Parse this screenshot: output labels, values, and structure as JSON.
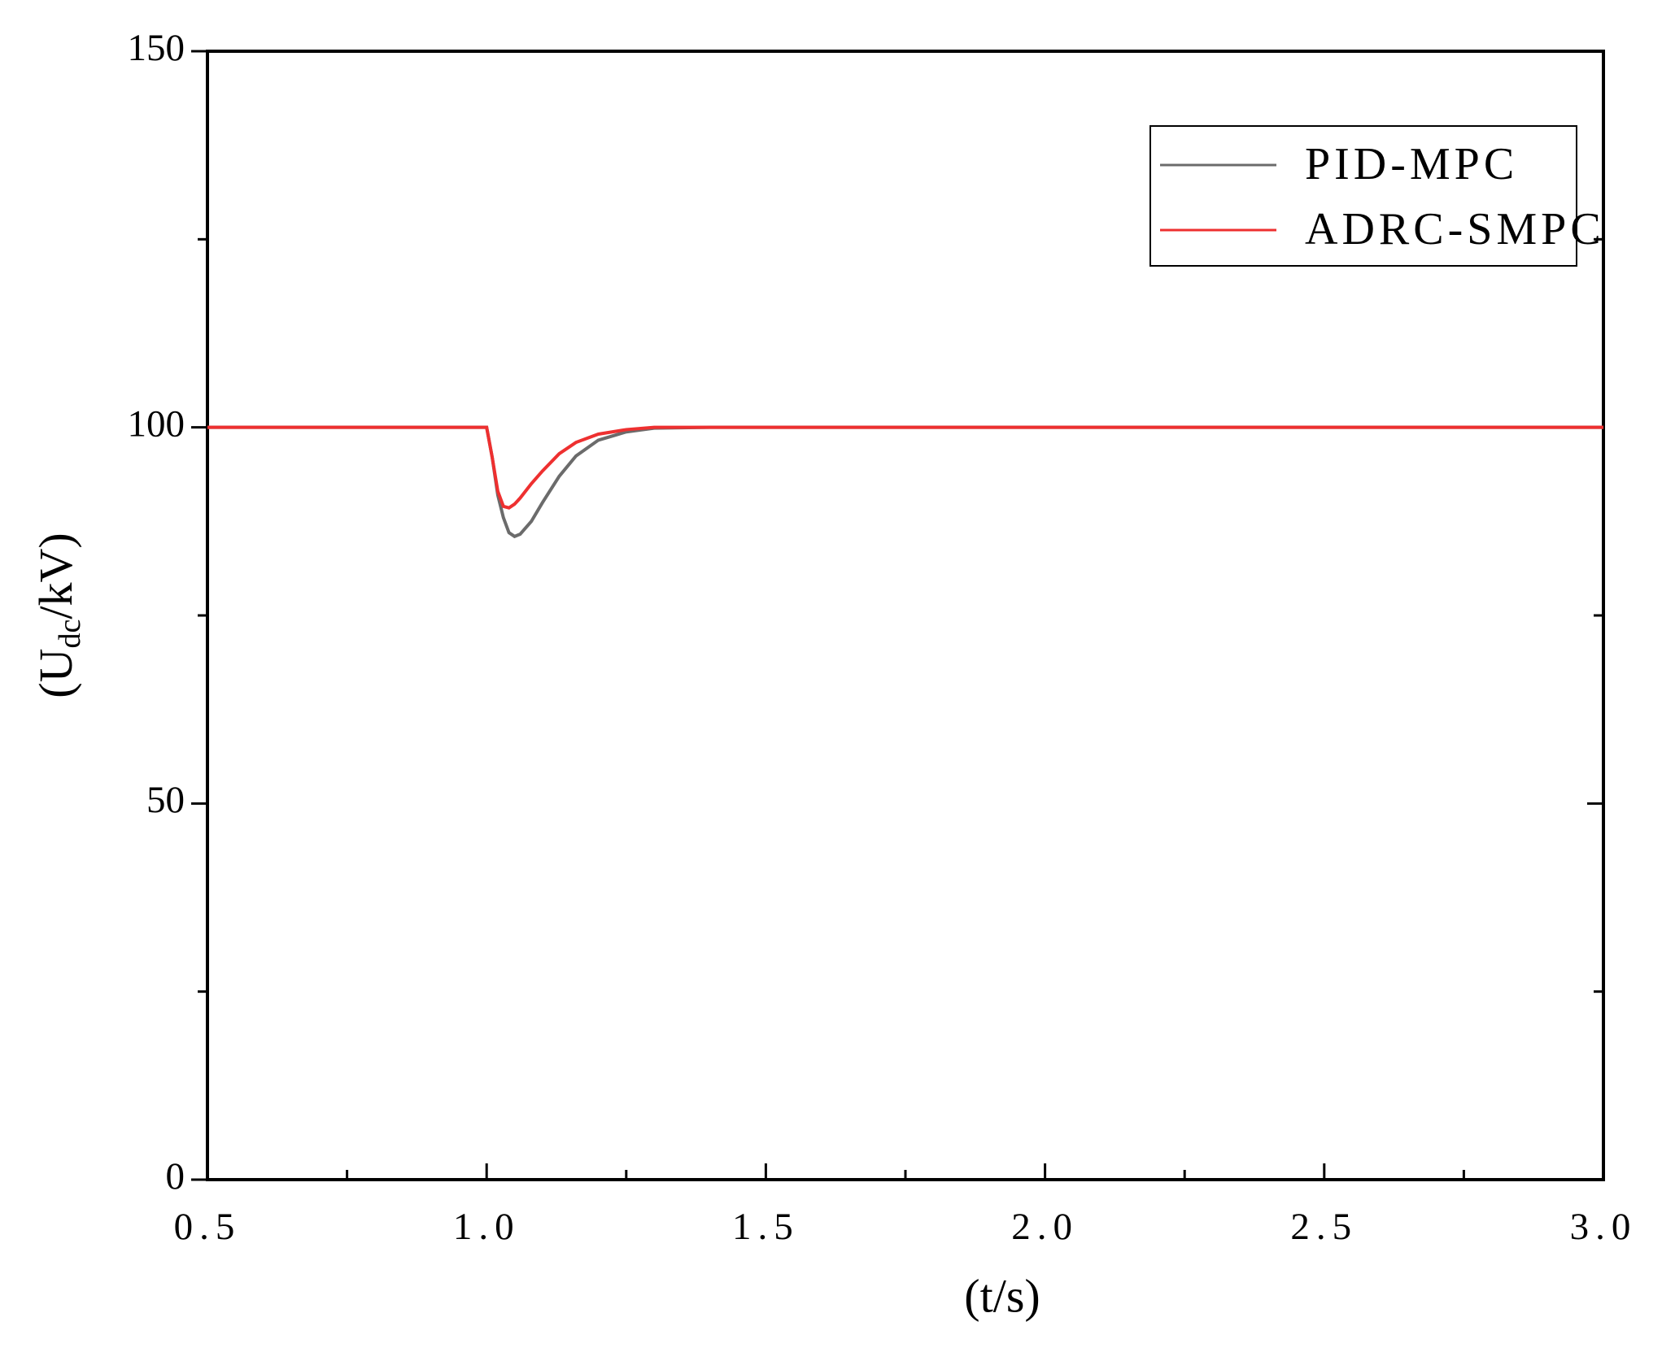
{
  "chart_data": {
    "type": "line",
    "y_label_parts": [
      "(U",
      "dc",
      "/kV)"
    ],
    "x_label": "(t/s)",
    "x": [
      0.5,
      0.9,
      1.0,
      1.01,
      1.02,
      1.03,
      1.04,
      1.05,
      1.06,
      1.08,
      1.1,
      1.13,
      1.16,
      1.2,
      1.25,
      1.3,
      1.4,
      1.6,
      2.0,
      2.5,
      3.0
    ],
    "series": [
      {
        "name": "PID-MPC",
        "color": "#6b6b6b",
        "values": [
          100,
          100,
          100,
          96,
          91,
          88,
          86,
          85.5,
          85.8,
          87.5,
          90,
          93.5,
          96.2,
          98.3,
          99.4,
          99.9,
          100,
          100,
          100,
          100,
          100
        ]
      },
      {
        "name": "ADRC-SMPC",
        "color": "#ee3030",
        "values": [
          100,
          100,
          100,
          96,
          91.5,
          89.5,
          89.3,
          89.8,
          90.6,
          92.5,
          94.2,
          96.5,
          98,
          99.1,
          99.7,
          100,
          100,
          100,
          100,
          100,
          100
        ]
      }
    ],
    "xlim": [
      0.5,
      3.0
    ],
    "xticks": [
      0.5,
      {
        "value": 1,
        "label": "1.0"
      },
      1.5,
      {
        "value": 2,
        "label": "2.0"
      },
      2.5,
      {
        "value": 3,
        "label": "3.0"
      }
    ],
    "xminorticks": [
      0.75,
      1.25,
      1.75,
      2.25,
      2.75
    ],
    "ylim": [
      0,
      150
    ],
    "yticks": [
      0,
      50,
      100,
      150
    ],
    "yminorticks": [
      25,
      75,
      125
    ],
    "grid": false,
    "legend": "upper right"
  }
}
